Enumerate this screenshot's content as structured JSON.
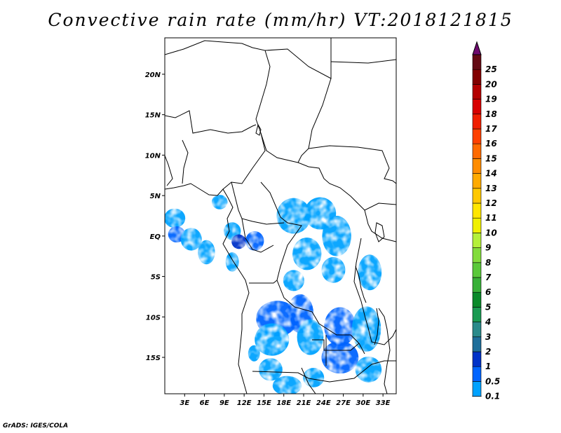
{
  "chart_data": {
    "type": "heatmap",
    "title": "Convective rain rate (mm/hr) VT:2018121815",
    "credit": "GrADS: IGES/COLA",
    "lon_range": [
      0,
      35
    ],
    "lat_range": [
      -19.5,
      24.5
    ],
    "x_ticks": [
      "3E",
      "6E",
      "9E",
      "12E",
      "15E",
      "18E",
      "21E",
      "24E",
      "27E",
      "30E",
      "33E"
    ],
    "x_tick_values": [
      3,
      6,
      9,
      12,
      15,
      18,
      21,
      24,
      27,
      30,
      33
    ],
    "y_ticks": [
      "20N",
      "15N",
      "10N",
      "5N",
      "EQ",
      "5S",
      "10S",
      "15S"
    ],
    "y_tick_values": [
      20,
      15,
      10,
      5,
      0,
      -5,
      -10,
      -15
    ],
    "colorbar": {
      "labels": [
        "0.1",
        "0.5",
        "1",
        "2",
        "3",
        "4",
        "5",
        "6",
        "7",
        "8",
        "9",
        "10",
        "11",
        "12",
        "13",
        "14",
        "15",
        "16",
        "17",
        "18",
        "19",
        "20",
        "25"
      ],
      "colors": [
        "#00a2ff",
        "#0064ff",
        "#0032c8",
        "#1e6e9a",
        "#2a8a8a",
        "#1a9a52",
        "#0a8a2a",
        "#38b038",
        "#5ac83a",
        "#82dc3c",
        "#b4f03a",
        "#f0f000",
        "#ffe600",
        "#ffc800",
        "#ffaa00",
        "#ff8c00",
        "#ff6a00",
        "#ff4000",
        "#f01e00",
        "#d80000",
        "#b40000",
        "#820000",
        "#640a14",
        "#6e0a6e"
      ]
    },
    "rain_regions": [
      {
        "lon": 1.5,
        "lat": 2.2,
        "rx": 1.6,
        "ry": 1.2,
        "level": 0.3
      },
      {
        "lon": 1.8,
        "lat": 0.2,
        "rx": 1.3,
        "ry": 1.0,
        "level": 0.5
      },
      {
        "lon": 4.0,
        "lat": -0.4,
        "rx": 1.6,
        "ry": 1.4,
        "level": 0.3
      },
      {
        "lon": 6.3,
        "lat": -2.0,
        "rx": 1.3,
        "ry": 1.5,
        "level": 0.3
      },
      {
        "lon": 8.3,
        "lat": 4.2,
        "rx": 1.2,
        "ry": 0.9,
        "level": 0.3
      },
      {
        "lon": 10.2,
        "lat": 0.6,
        "rx": 1.3,
        "ry": 1.1,
        "level": 0.3
      },
      {
        "lon": 11.2,
        "lat": -0.7,
        "rx": 1.1,
        "ry": 0.9,
        "level": 1
      },
      {
        "lon": 13.6,
        "lat": -0.6,
        "rx": 1.4,
        "ry": 1.2,
        "level": 0.5
      },
      {
        "lon": 10.2,
        "lat": -3.2,
        "rx": 1.0,
        "ry": 1.2,
        "level": 0.3
      },
      {
        "lon": 19.5,
        "lat": 2.5,
        "rx": 2.6,
        "ry": 2.2,
        "level": 0.3
      },
      {
        "lon": 23.5,
        "lat": 2.8,
        "rx": 2.4,
        "ry": 2.0,
        "level": 0.3
      },
      {
        "lon": 26.0,
        "lat": 0.0,
        "rx": 2.2,
        "ry": 2.5,
        "level": 0.3
      },
      {
        "lon": 21.5,
        "lat": -2.2,
        "rx": 2.2,
        "ry": 2.0,
        "level": 0.3
      },
      {
        "lon": 25.5,
        "lat": -4.2,
        "rx": 1.8,
        "ry": 1.6,
        "level": 0.3
      },
      {
        "lon": 19.5,
        "lat": -5.5,
        "rx": 1.6,
        "ry": 1.3,
        "level": 0.3
      },
      {
        "lon": 31.0,
        "lat": -4.5,
        "rx": 1.8,
        "ry": 2.2,
        "level": 0.3
      },
      {
        "lon": 17.0,
        "lat": -10.2,
        "rx": 3.2,
        "ry": 2.2,
        "level": 0.5
      },
      {
        "lon": 20.5,
        "lat": -9.6,
        "rx": 2.0,
        "ry": 2.4,
        "level": 0.5
      },
      {
        "lon": 16.2,
        "lat": -12.8,
        "rx": 2.6,
        "ry": 2.0,
        "level": 0.3
      },
      {
        "lon": 22.0,
        "lat": -12.5,
        "rx": 2.0,
        "ry": 2.2,
        "level": 0.3
      },
      {
        "lon": 26.5,
        "lat": -11.2,
        "rx": 2.4,
        "ry": 2.4,
        "level": 0.5
      },
      {
        "lon": 30.5,
        "lat": -11.5,
        "rx": 2.2,
        "ry": 2.8,
        "level": 0.3
      },
      {
        "lon": 26.5,
        "lat": -15.0,
        "rx": 2.8,
        "ry": 2.0,
        "level": 0.5
      },
      {
        "lon": 30.8,
        "lat": -16.5,
        "rx": 2.0,
        "ry": 1.6,
        "level": 0.3
      },
      {
        "lon": 16.0,
        "lat": -16.5,
        "rx": 1.8,
        "ry": 1.4,
        "level": 0.3
      },
      {
        "lon": 18.5,
        "lat": -18.5,
        "rx": 2.2,
        "ry": 1.2,
        "level": 0.3
      },
      {
        "lon": 22.5,
        "lat": -17.5,
        "rx": 1.6,
        "ry": 1.2,
        "level": 0.3
      },
      {
        "lon": 13.5,
        "lat": -14.5,
        "rx": 0.9,
        "ry": 1.0,
        "level": 0.3
      }
    ]
  }
}
